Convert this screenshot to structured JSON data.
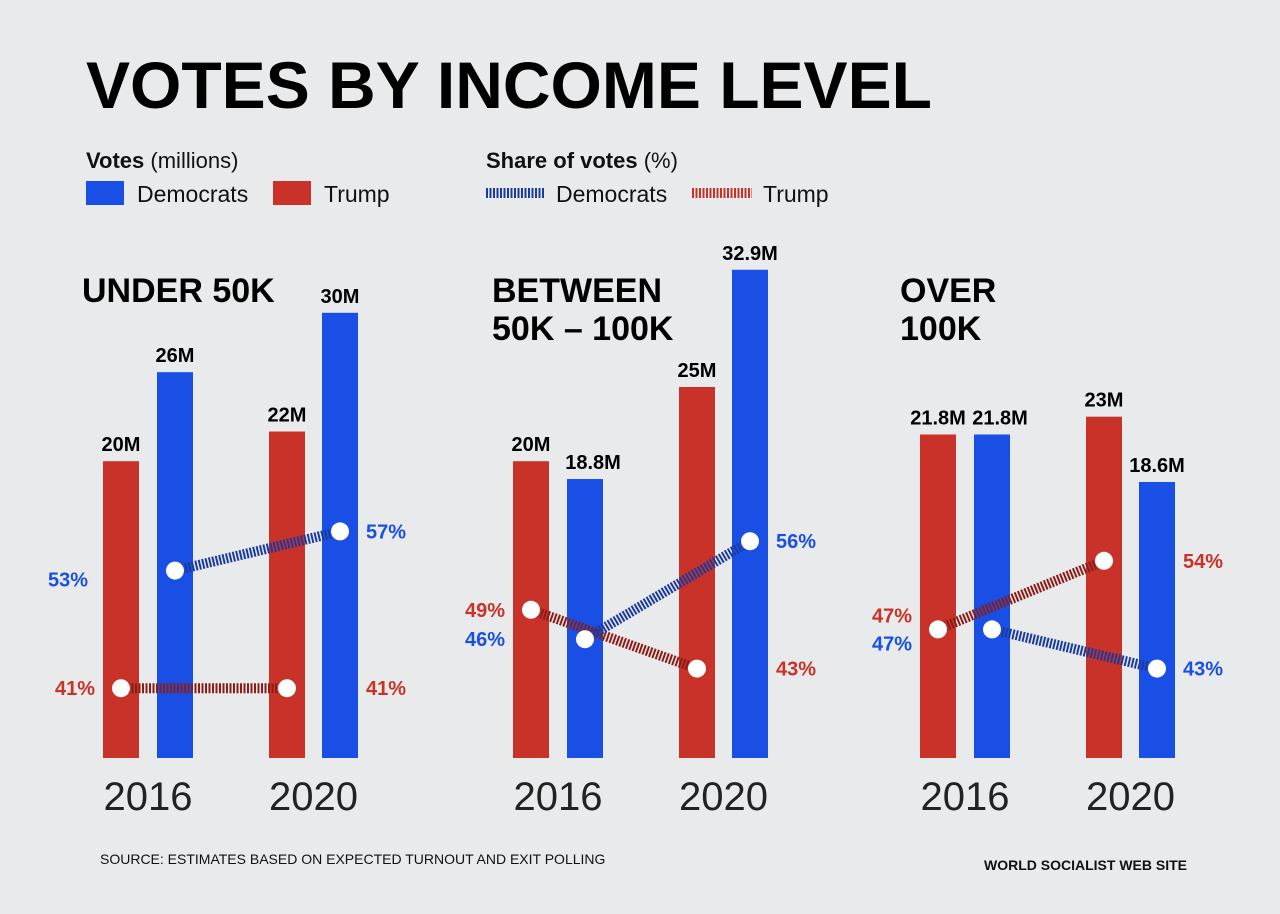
{
  "colors": {
    "democrats": "#1a4fe6",
    "trump": "#c83228",
    "democrats_line": "#1a3aa0",
    "trump_line": "#8c1c16",
    "background": "#e9eaec"
  },
  "chart_data": {
    "type": "bar",
    "title": "VOTES BY INCOME LEVEL",
    "legend": {
      "votes_heading_bold": "Votes",
      "votes_heading_rest": "(millions)",
      "share_heading_bold": "Share of votes",
      "share_heading_rest": "(%)",
      "votes_series": [
        "Democrats",
        "Trump"
      ],
      "share_series": [
        "Democrats",
        "Trump"
      ],
      "placement": "top-left"
    },
    "categories": [
      "2016",
      "2020"
    ],
    "panels": [
      {
        "title": [
          "UNDER 50K"
        ],
        "votes": {
          "Trump": [
            20,
            22
          ],
          "Democrats": [
            26,
            30
          ]
        },
        "vote_labels": {
          "Trump": [
            "20M",
            "22M"
          ],
          "Democrats": [
            "26M",
            "30M"
          ]
        },
        "share": {
          "Trump": [
            41,
            41
          ],
          "Democrats": [
            53,
            57
          ]
        }
      },
      {
        "title": [
          "BETWEEN",
          "50K – 100K"
        ],
        "votes": {
          "Trump": [
            20,
            25
          ],
          "Democrats": [
            18.8,
            32.9
          ]
        },
        "vote_labels": {
          "Trump": [
            "20M",
            "25M"
          ],
          "Democrats": [
            "18.8M",
            "32.9M"
          ]
        },
        "share": {
          "Trump": [
            49,
            43
          ],
          "Democrats": [
            46,
            56
          ]
        }
      },
      {
        "title": [
          "OVER",
          "100K"
        ],
        "votes": {
          "Trump": [
            21.8,
            23
          ],
          "Democrats": [
            21.8,
            18.6
          ]
        },
        "vote_labels": {
          "Trump": [
            "21.8M",
            "23M"
          ],
          "Democrats": [
            "21.8M",
            "18.6M"
          ]
        },
        "share": {
          "Trump": [
            47,
            54
          ],
          "Democrats": [
            47,
            43
          ]
        }
      }
    ],
    "grid": false
  },
  "footer": {
    "source": "SOURCE: ESTIMATES BASED ON EXPECTED TURNOUT AND EXIT POLLING",
    "credit": "WORLD SOCIALIST WEB SITE"
  }
}
